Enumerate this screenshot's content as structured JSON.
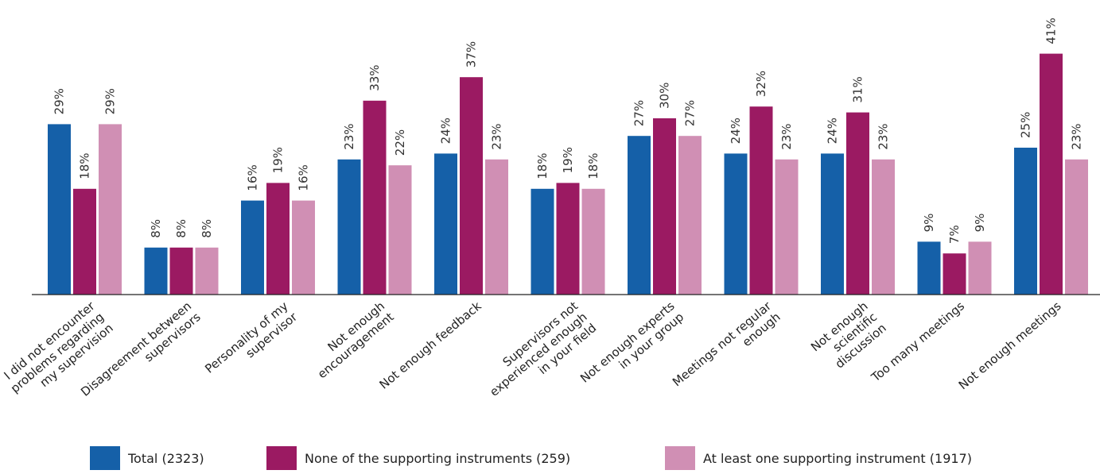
{
  "chart_data": {
    "type": "bar",
    "title": "",
    "xlabel": "",
    "ylabel": "",
    "ylim": [
      0,
      45
    ],
    "grid": false,
    "legend_position": "bottom",
    "categories": [
      "I did not encounter problems regarding my supervision",
      "Disagreement between supervisors",
      "Personality of my supervisor",
      "Not enough encouragement",
      "Not enough feedback",
      "Supervisors not experienced enough in your field",
      "Not enough experts in your group",
      "Meetings not regular enough",
      "Not enough scientific discussion",
      "Too many meetings",
      "Not enough meetings"
    ],
    "category_lines": [
      [
        "I did not encounter",
        "problems regarding",
        "my supervision"
      ],
      [
        "Disagreement between",
        "supervisors"
      ],
      [
        "Personality of my",
        "supervisor"
      ],
      [
        "Not enough",
        "encouragement"
      ],
      [
        "Not enough feedback"
      ],
      [
        "Supervisors not",
        "experienced enough",
        "in your field"
      ],
      [
        "Not enough experts",
        "in your group"
      ],
      [
        "Meetings not regular",
        "enough"
      ],
      [
        "Not enough",
        "scientific",
        "discussion"
      ],
      [
        "Too many meetings"
      ],
      [
        "Not enough meetings"
      ]
    ],
    "series": [
      {
        "name": "Total (2323)",
        "color": "#1560a8",
        "values": [
          29,
          8,
          16,
          23,
          24,
          18,
          27,
          24,
          24,
          9,
          25
        ],
        "labels": [
          "29%",
          "8%",
          "16%",
          "23%",
          "24%",
          "18%",
          "27%",
          "24%",
          "24%",
          "9%",
          "25%"
        ]
      },
      {
        "name": "None of the supporting instruments (259)",
        "color": "#9b1a62",
        "values": [
          18,
          8,
          19,
          33,
          37,
          19,
          30,
          32,
          31,
          7,
          41
        ],
        "labels": [
          "18%",
          "8%",
          "19%",
          "33%",
          "37%",
          "19%",
          "30%",
          "32%",
          "31%",
          "7%",
          "41%"
        ]
      },
      {
        "name": "At least one supporting instrument (1917)",
        "color": "#d08fb4",
        "values": [
          29,
          8,
          16,
          22,
          23,
          18,
          27,
          23,
          23,
          9,
          23
        ],
        "labels": [
          "29%",
          "8%",
          "16%",
          "22%",
          "23%",
          "18%",
          "27%",
          "23%",
          "23%",
          "9%",
          "23%"
        ]
      }
    ]
  },
  "legend": {
    "items": [
      {
        "label": "Total (2323)",
        "color": "#1560a8"
      },
      {
        "label": "None of the supporting instruments (259)",
        "color": "#9b1a62"
      },
      {
        "label": "At least one supporting instrument (1917)",
        "color": "#d08fb4"
      }
    ]
  }
}
